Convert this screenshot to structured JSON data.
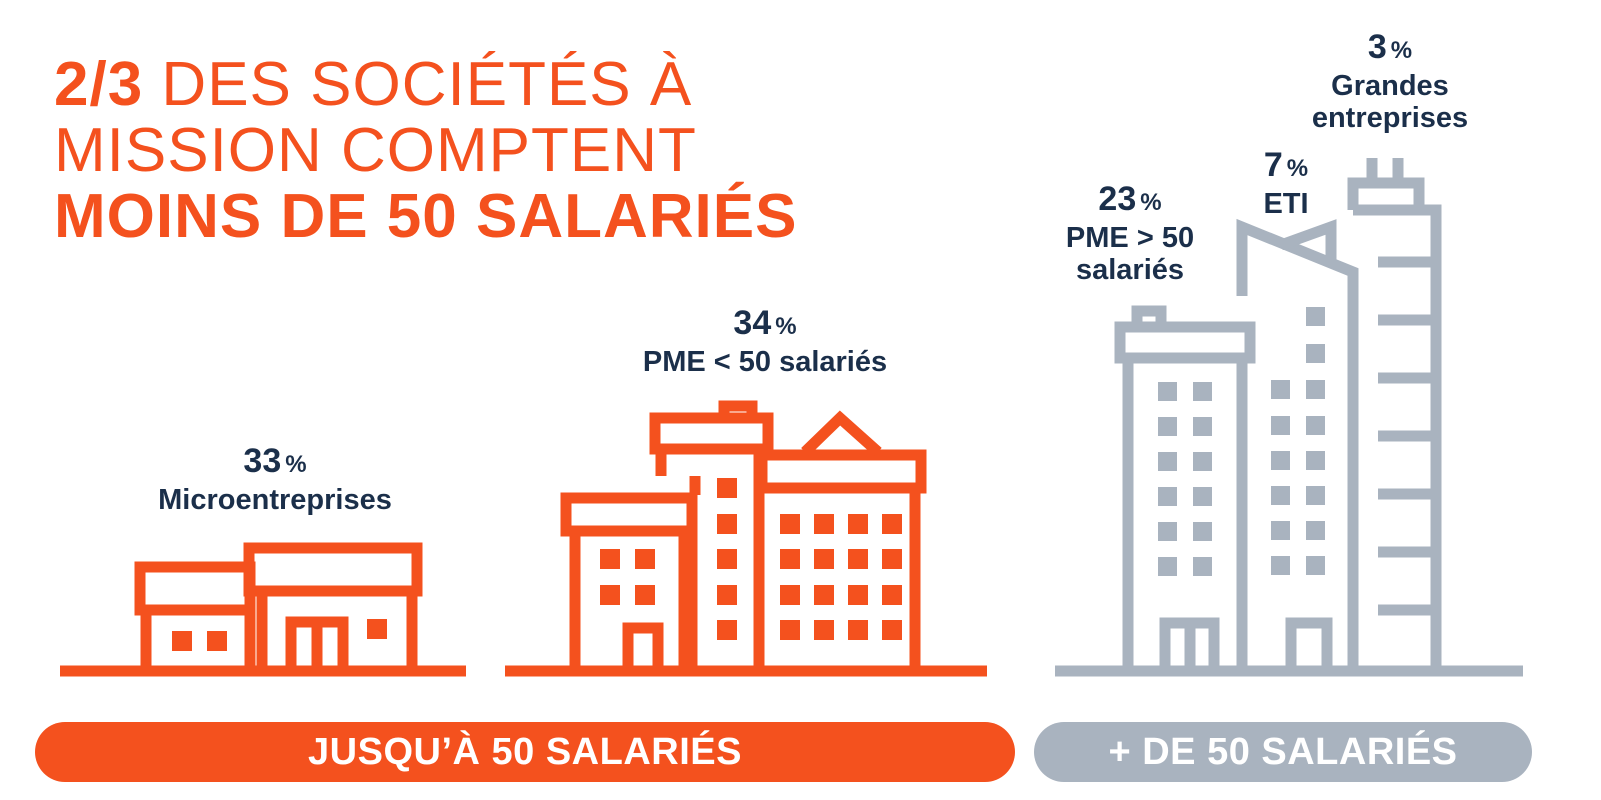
{
  "headline": {
    "line1_strong": "2/3",
    "line1_rest": " DES SOCIÉTÉS À",
    "line2": "MISSION COMPTENT",
    "line3": "MOINS DE 50 SALARIÉS"
  },
  "stats": [
    {
      "id": "micro",
      "value": "33",
      "unit": "%",
      "label_lines": [
        "Microentreprises"
      ]
    },
    {
      "id": "pme_small",
      "value": "34",
      "unit": "%",
      "label_lines": [
        "PME < 50 salariés"
      ]
    },
    {
      "id": "pme_large",
      "value": "23",
      "unit": "%",
      "label_lines": [
        "PME > 50",
        "salariés"
      ]
    },
    {
      "id": "eti",
      "value": "7",
      "unit": "%",
      "label_lines": [
        "ETI"
      ]
    },
    {
      "id": "grandes",
      "value": "3",
      "unit": "%",
      "label_lines": [
        "Grandes",
        "entreprises"
      ]
    }
  ],
  "categories": {
    "left_label": "JUSQU’À 50 SALARIÉS",
    "right_label": "+ DE 50 SALARIÉS"
  },
  "colors": {
    "orange": "#f4511e",
    "gray": "#a9b3bf",
    "navy": "#1b2f4a"
  },
  "icons": {
    "micro": "small-house-building-icon",
    "pme_small": "mid-building-icon",
    "large": "tall-buildings-icon"
  }
}
